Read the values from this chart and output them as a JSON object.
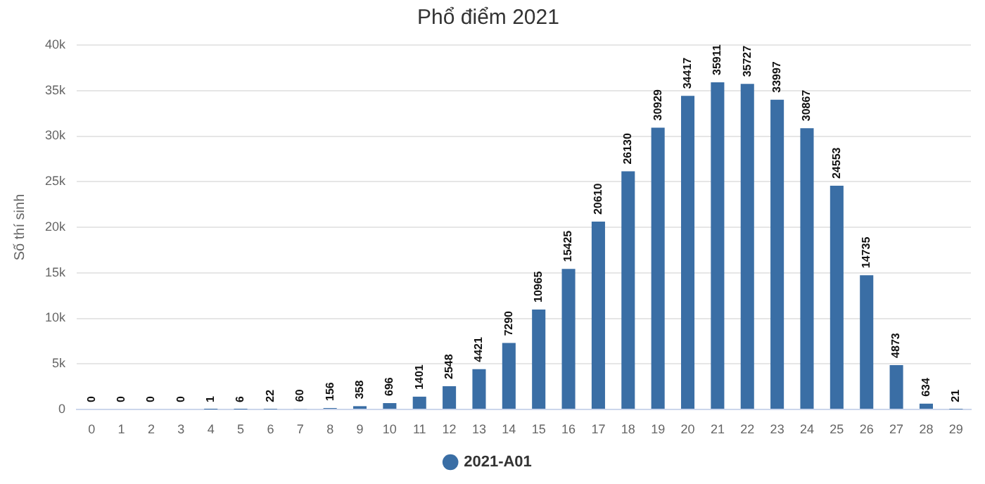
{
  "chart_data": {
    "type": "bar",
    "title": "Phổ điểm 2021",
    "ylabel": "Số thí sinh",
    "categories": [
      "0",
      "1",
      "2",
      "3",
      "4",
      "5",
      "6",
      "7",
      "8",
      "9",
      "10",
      "11",
      "12",
      "13",
      "14",
      "15",
      "16",
      "17",
      "18",
      "19",
      "20",
      "21",
      "22",
      "23",
      "24",
      "25",
      "26",
      "27",
      "28",
      "29"
    ],
    "series": [
      {
        "name": "2021-A01",
        "color": "#3a6ea5",
        "values": [
          0,
          0,
          0,
          0,
          1,
          6,
          22,
          60,
          156,
          358,
          696,
          1401,
          2548,
          4421,
          7290,
          10965,
          15425,
          20610,
          26130,
          30929,
          34417,
          35911,
          35727,
          33997,
          30867,
          24553,
          14735,
          4873,
          634,
          21
        ]
      }
    ],
    "ylim": [
      0,
      40000
    ],
    "yticks": [
      0,
      {
        "value": 5000,
        "label": "5k"
      },
      {
        "value": 10000,
        "label": "10k"
      },
      {
        "value": 15000,
        "label": "15k"
      },
      {
        "value": 20000,
        "label": "20k"
      },
      {
        "value": 25000,
        "label": "25k"
      },
      {
        "value": 30000,
        "label": "30k"
      },
      {
        "value": 35000,
        "label": "35k"
      },
      {
        "value": 40000,
        "label": "40k"
      }
    ],
    "grid": "y",
    "legend": "bottom",
    "marker": "circle",
    "data_labels": true
  }
}
